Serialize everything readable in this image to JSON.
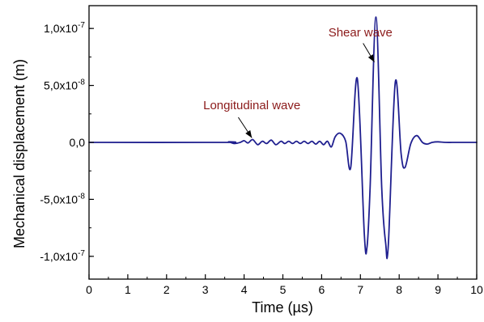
{
  "chart_data": {
    "type": "line",
    "title": "",
    "xlabel": "Time (µs)",
    "ylabel": "Mechanical displacement (m)",
    "xlim": [
      0,
      10
    ],
    "ylim": [
      -1.2e-07,
      1.2e-07
    ],
    "xticks": [
      0,
      1,
      2,
      3,
      4,
      5,
      6,
      7,
      8,
      9,
      10
    ],
    "xtick_labels": [
      "0",
      "1",
      "2",
      "3",
      "4",
      "5",
      "6",
      "7",
      "8",
      "9",
      "10"
    ],
    "yticks": [
      -1e-07,
      -5e-08,
      0,
      5e-08,
      1e-07
    ],
    "ytick_labels": [
      "-1,0x10",
      "-5,0x10",
      "0,0",
      "5,0x10",
      "1,0x10"
    ],
    "ytick_exponents": [
      "-7",
      "-8",
      "",
      "-8",
      "-7"
    ],
    "grid": false,
    "legend": "none",
    "series": [
      {
        "line_color": "#1f1f8f",
        "x": [
          0,
          3.5,
          3.6,
          3.75,
          3.9,
          4.0,
          4.1,
          4.22,
          4.35,
          4.47,
          4.58,
          4.7,
          4.82,
          4.95,
          5.05,
          5.15,
          5.25,
          5.35,
          5.45,
          5.55,
          5.65,
          5.75,
          5.85,
          5.95,
          6.05,
          6.15,
          6.25,
          6.35,
          6.48,
          6.62,
          6.75,
          6.92,
          7.1,
          7.17,
          7.25,
          7.4,
          7.55,
          7.65,
          7.72,
          7.9,
          8.05,
          8.15,
          8.3,
          8.45,
          8.6,
          8.72,
          8.85,
          9.0,
          9.2,
          9.5,
          10.0
        ],
        "y": [
          0,
          0,
          5e-10,
          -1e-09,
          0,
          1.5e-09,
          -5e-10,
          2.5e-09,
          -2e-09,
          1e-09,
          -1e-09,
          2e-09,
          -2e-09,
          1e-09,
          -1e-09,
          1e-09,
          -1e-09,
          1e-09,
          -1e-09,
          1e-09,
          -1e-09,
          1e-09,
          -1.5e-09,
          1e-09,
          -2e-09,
          1e-09,
          -4e-09,
          5e-09,
          8e-09,
          1e-09,
          -2.2e-08,
          5.6e-08,
          -8e-08,
          -9.2e-08,
          -4e-08,
          1.1e-07,
          -4e-08,
          -8.8e-08,
          -9e-08,
          5.3e-08,
          -1e-08,
          -2.2e-08,
          -1e-09,
          6e-09,
          0,
          -1.5e-09,
          0,
          5e-10,
          0,
          0,
          0
        ]
      }
    ],
    "annotations": [
      {
        "text": "Shear wave",
        "color": "#8b1a1a",
        "text_x": 7.0,
        "text_y": 9.3e-08,
        "arrow_from": [
          7.07,
          8.7e-08
        ],
        "arrow_to": [
          7.36,
          7.05e-08
        ]
      },
      {
        "text": "Longitudinal wave",
        "color": "#8b1a1a",
        "text_x": 4.2,
        "text_y": 2.9e-08,
        "arrow_from": [
          3.85,
          2.2e-08
        ],
        "arrow_to": [
          4.2,
          4e-09
        ]
      }
    ]
  }
}
